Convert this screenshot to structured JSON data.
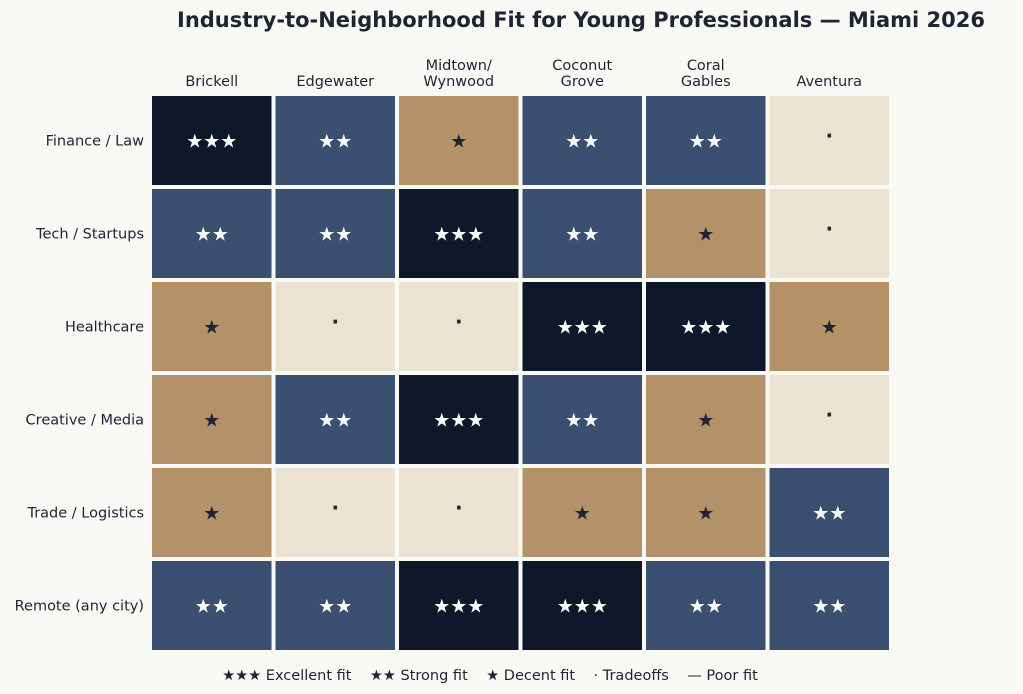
{
  "chart_data": {
    "type": "heatmap",
    "title": "Industry-to-Neighborhood Fit for Young Professionals — Miami 2026",
    "columns": [
      [
        "Brickell"
      ],
      [
        "Edgewater"
      ],
      [
        "Midtown/",
        "Wynwood"
      ],
      [
        "Coconut",
        "Grove"
      ],
      [
        "Coral",
        "Gables"
      ],
      [
        "Aventura"
      ]
    ],
    "rows": [
      "Finance / Law",
      "Tech / Startups",
      "Healthcare",
      "Creative / Media",
      "Trade / Logistics",
      "Remote (any city)"
    ],
    "values": [
      [
        3,
        2,
        1,
        2,
        2,
        0
      ],
      [
        2,
        2,
        3,
        2,
        1,
        0
      ],
      [
        1,
        0,
        0,
        3,
        3,
        1
      ],
      [
        1,
        2,
        3,
        2,
        1,
        0
      ],
      [
        1,
        0,
        0,
        1,
        1,
        2
      ],
      [
        2,
        2,
        3,
        3,
        2,
        2
      ]
    ],
    "symbols": {
      "3": "★★★",
      "2": "★★",
      "1": "★",
      "0": "·"
    },
    "colors": {
      "3": "#0f172a",
      "2": "#3b5070",
      "1": "#b3926a",
      "0": "#ece2d1"
    },
    "text_colors": {
      "3": "#ffffff",
      "2": "#ffffff",
      "1": "#1f2433",
      "0": "#1f2433"
    },
    "legend": [
      {
        "symbol": "★★★",
        "label": "Excellent fit"
      },
      {
        "symbol": "★★",
        "label": "Strong fit"
      },
      {
        "symbol": "★",
        "label": "Decent fit"
      },
      {
        "symbol": "·",
        "label": "Tradeoffs"
      },
      {
        "symbol": "—",
        "label": "Poor fit"
      }
    ],
    "background": "#f9f9f5",
    "text_color": "#1f2433"
  }
}
